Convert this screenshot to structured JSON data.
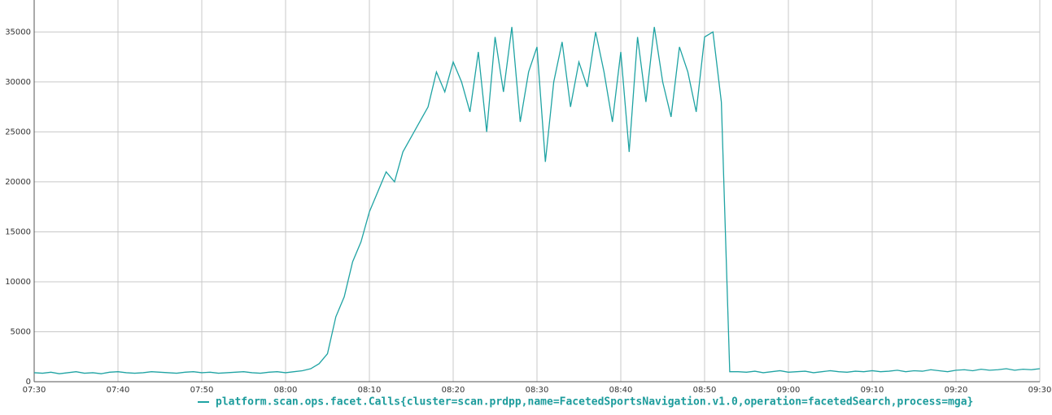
{
  "chart_data": {
    "type": "line",
    "x": [
      "07:30",
      "07:31",
      "07:32",
      "07:33",
      "07:34",
      "07:35",
      "07:36",
      "07:37",
      "07:38",
      "07:39",
      "07:40",
      "07:41",
      "07:42",
      "07:43",
      "07:44",
      "07:45",
      "07:46",
      "07:47",
      "07:48",
      "07:49",
      "07:50",
      "07:51",
      "07:52",
      "07:53",
      "07:54",
      "07:55",
      "07:56",
      "07:57",
      "07:58",
      "07:59",
      "08:00",
      "08:01",
      "08:02",
      "08:03",
      "08:04",
      "08:05",
      "08:06",
      "08:07",
      "08:08",
      "08:09",
      "08:10",
      "08:11",
      "08:12",
      "08:13",
      "08:14",
      "08:15",
      "08:16",
      "08:17",
      "08:18",
      "08:19",
      "08:20",
      "08:21",
      "08:22",
      "08:23",
      "08:24",
      "08:25",
      "08:26",
      "08:27",
      "08:28",
      "08:29",
      "08:30",
      "08:31",
      "08:32",
      "08:33",
      "08:34",
      "08:35",
      "08:36",
      "08:37",
      "08:38",
      "08:39",
      "08:40",
      "08:41",
      "08:42",
      "08:43",
      "08:44",
      "08:45",
      "08:46",
      "08:47",
      "08:48",
      "08:49",
      "08:50",
      "08:51",
      "08:52",
      "08:53",
      "08:54",
      "08:55",
      "08:56",
      "08:57",
      "08:58",
      "08:59",
      "09:00",
      "09:01",
      "09:02",
      "09:03",
      "09:04",
      "09:05",
      "09:06",
      "09:07",
      "09:08",
      "09:09",
      "09:10",
      "09:11",
      "09:12",
      "09:13",
      "09:14",
      "09:15",
      "09:16",
      "09:17",
      "09:18",
      "09:19",
      "09:20",
      "09:21",
      "09:22",
      "09:23",
      "09:24",
      "09:25",
      "09:26",
      "09:27",
      "09:28",
      "09:29",
      "09:30"
    ],
    "series": [
      {
        "name": "platform.scan.ops.facet.Calls{cluster=scan.prdpp,name=FacetedSportsNavigation.v1.0,operation=facetedSearch,process=mga}",
        "color": "#1fa3a3",
        "values": [
          900,
          850,
          950,
          800,
          900,
          1000,
          850,
          900,
          800,
          950,
          1000,
          900,
          850,
          900,
          1000,
          950,
          900,
          850,
          950,
          1000,
          900,
          950,
          850,
          900,
          950,
          1000,
          900,
          850,
          950,
          1000,
          900,
          1000,
          1100,
          1300,
          1800,
          2800,
          6500,
          8500,
          12000,
          14000,
          17000,
          19000,
          21000,
          20000,
          23000,
          24500,
          26000,
          27500,
          31000,
          29000,
          32000,
          30000,
          27000,
          33000,
          25000,
          34500,
          29000,
          35500,
          26000,
          31000,
          33500,
          22000,
          30000,
          34000,
          27500,
          32000,
          29500,
          35000,
          31000,
          26000,
          33000,
          23000,
          34500,
          28000,
          35500,
          30000,
          26500,
          33500,
          31000,
          27000,
          34500,
          35000,
          28000,
          1000,
          1000,
          950,
          1050,
          900,
          1000,
          1100,
          950,
          1000,
          1050,
          900,
          1000,
          1100,
          1000,
          950,
          1050,
          1000,
          1100,
          1000,
          1050,
          1150,
          1000,
          1100,
          1050,
          1200,
          1100,
          1000,
          1150,
          1200,
          1100,
          1250,
          1150,
          1200,
          1300,
          1150,
          1250,
          1200,
          1300
        ]
      }
    ],
    "xlim": [
      "07:30",
      "09:30"
    ],
    "xticks": [
      "07:30",
      "07:40",
      "07:50",
      "08:00",
      "08:10",
      "08:20",
      "08:30",
      "08:40",
      "08:50",
      "09:00",
      "09:10",
      "09:20",
      "09:30"
    ],
    "ylim": [
      0,
      38200
    ],
    "yticks": [
      0,
      5000,
      10000,
      15000,
      20000,
      25000,
      30000,
      35000
    ],
    "grid": true
  }
}
